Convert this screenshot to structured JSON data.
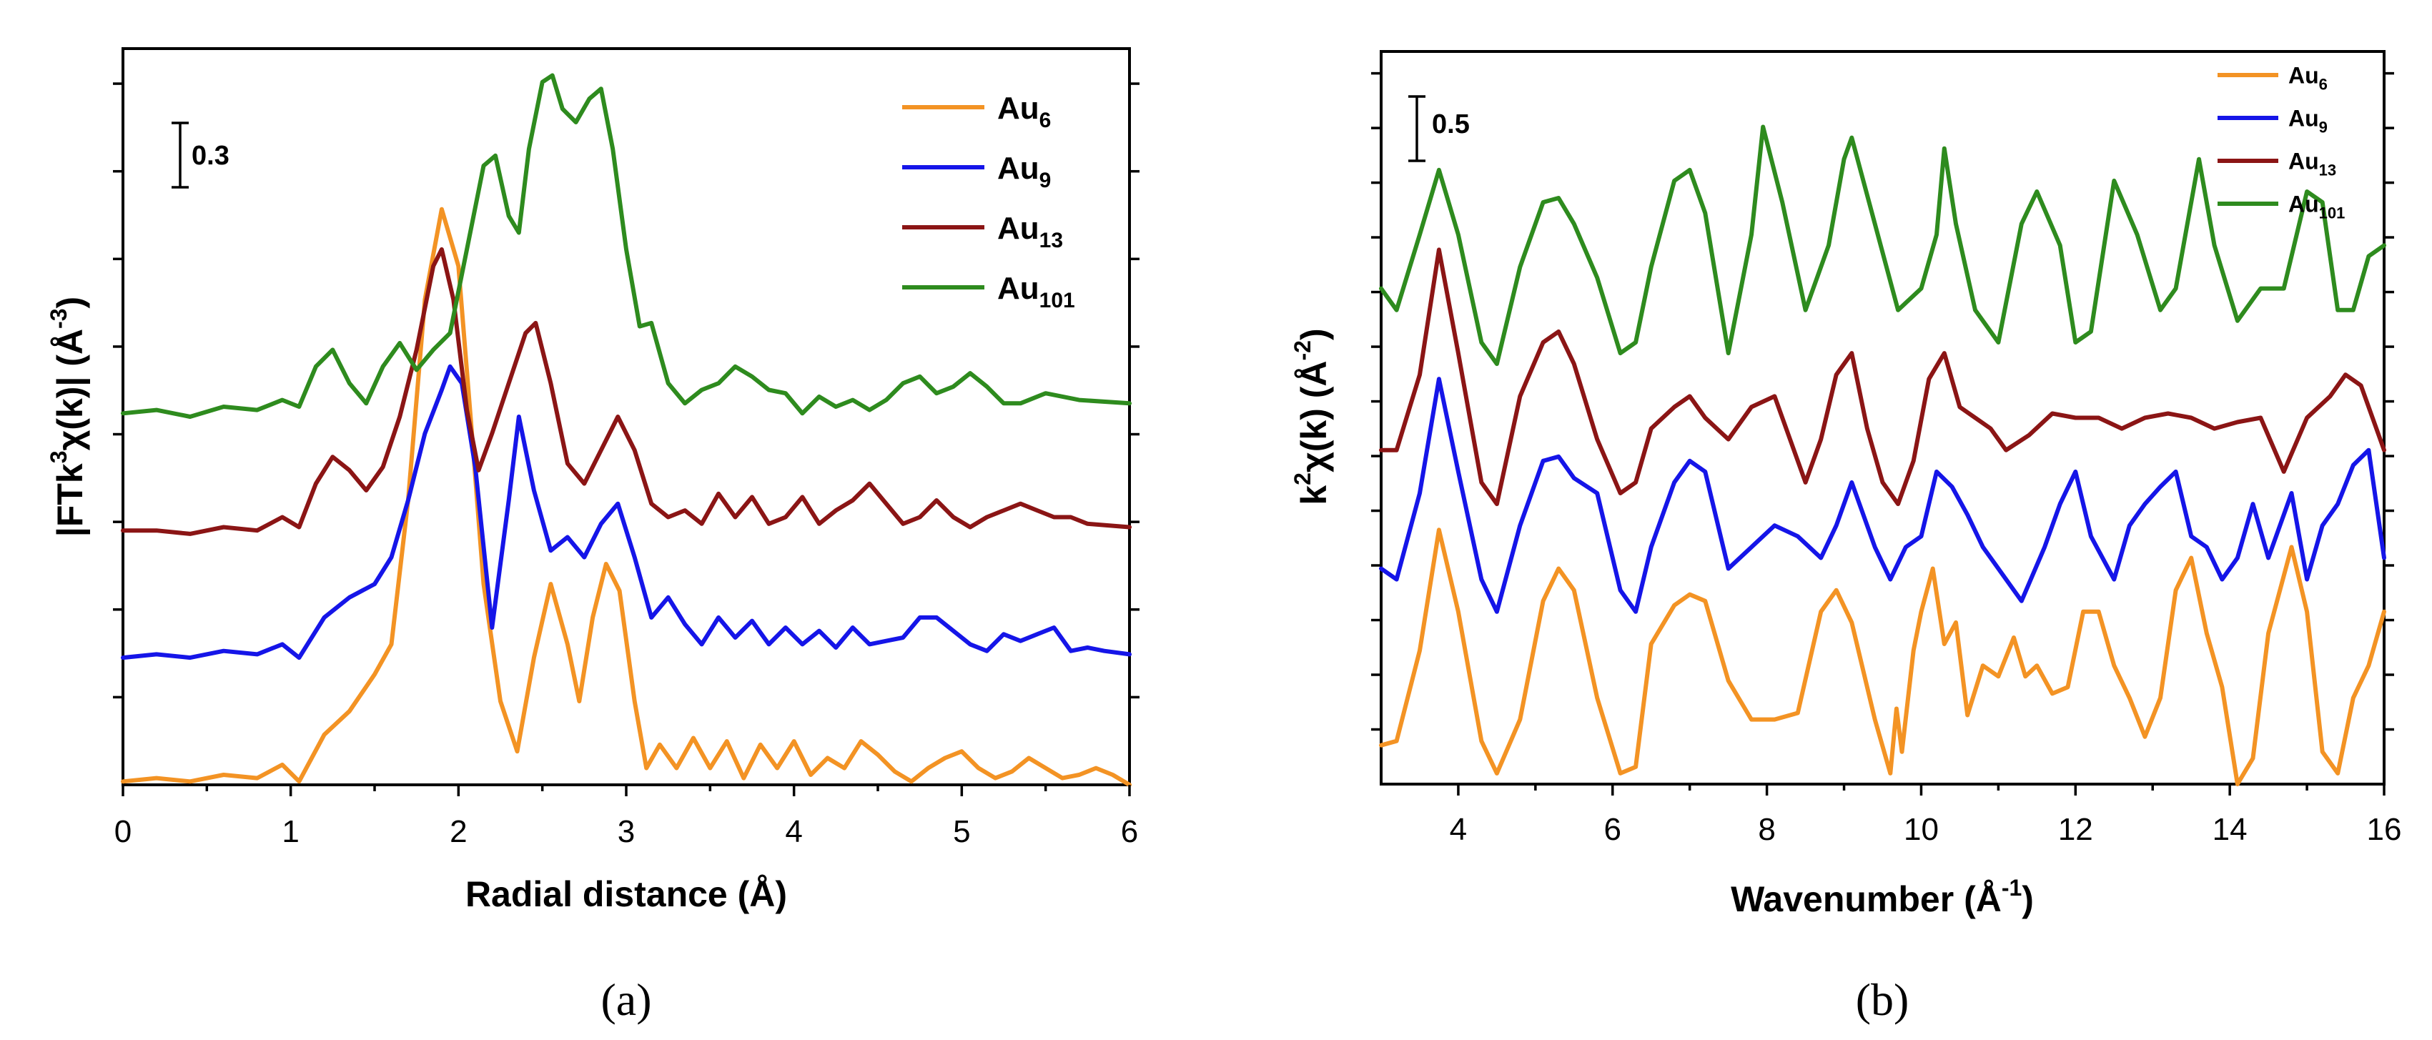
{
  "colors": {
    "Au6": "#f39324",
    "Au9": "#1515e8",
    "Au13": "#8b1515",
    "Au101": "#2e8b1e"
  },
  "chart_data": [
    {
      "type": "line",
      "panel_label": "(a)",
      "xlabel": "Radial distance (Å)",
      "ylabel_main": "|FTk",
      "ylabel_sup1": "3",
      "ylabel_mid": "χ(k)| (Å",
      "ylabel_sup2": "-3",
      "ylabel_end": ")",
      "xlim": [
        0,
        6
      ],
      "ylim": [
        0,
        2.2
      ],
      "xticks": [
        0,
        1,
        2,
        3,
        4,
        5,
        6
      ],
      "xtick_labels": [
        "0",
        "1",
        "2",
        "3",
        "4",
        "5",
        "6"
      ],
      "scale_bar": {
        "value": 0.3,
        "label": "0.3"
      },
      "legend": [
        {
          "base": "Au",
          "sub": "6",
          "color": "#f39324"
        },
        {
          "base": "Au",
          "sub": "9",
          "color": "#1515e8"
        },
        {
          "base": "Au",
          "sub": "13",
          "color": "#8b1515"
        },
        {
          "base": "Au",
          "sub": "101",
          "color": "#2e8b1e"
        }
      ],
      "series": [
        {
          "name": "Au6",
          "color": "#f39324",
          "x": [
            0,
            0.2,
            0.4,
            0.6,
            0.8,
            0.95,
            1.05,
            1.2,
            1.35,
            1.5,
            1.6,
            1.7,
            1.8,
            1.9,
            2.0,
            2.08,
            2.15,
            2.25,
            2.35,
            2.45,
            2.55,
            2.65,
            2.72,
            2.8,
            2.88,
            2.96,
            3.05,
            3.12,
            3.2,
            3.3,
            3.4,
            3.5,
            3.6,
            3.7,
            3.8,
            3.9,
            4.0,
            4.1,
            4.2,
            4.3,
            4.4,
            4.5,
            4.6,
            4.7,
            4.8,
            4.9,
            5.0,
            5.1,
            5.2,
            5.3,
            5.4,
            5.5,
            5.6,
            5.7,
            5.8,
            5.9,
            6.0
          ],
          "y": [
            0.01,
            0.02,
            0.01,
            0.03,
            0.02,
            0.06,
            0.01,
            0.15,
            0.22,
            0.33,
            0.42,
            0.85,
            1.45,
            1.72,
            1.55,
            1.05,
            0.6,
            0.25,
            0.1,
            0.38,
            0.6,
            0.42,
            0.25,
            0.5,
            0.66,
            0.58,
            0.25,
            0.05,
            0.12,
            0.05,
            0.14,
            0.05,
            0.13,
            0.02,
            0.12,
            0.05,
            0.13,
            0.03,
            0.08,
            0.05,
            0.13,
            0.09,
            0.04,
            0.01,
            0.05,
            0.08,
            0.1,
            0.05,
            0.02,
            0.04,
            0.08,
            0.05,
            0.02,
            0.03,
            0.05,
            0.03,
            0.0
          ]
        },
        {
          "name": "Au9",
          "color": "#1515e8",
          "x": [
            0,
            0.2,
            0.4,
            0.6,
            0.8,
            0.95,
            1.05,
            1.2,
            1.35,
            1.5,
            1.6,
            1.7,
            1.8,
            1.9,
            1.95,
            2.02,
            2.1,
            2.2,
            2.3,
            2.36,
            2.45,
            2.55,
            2.65,
            2.75,
            2.85,
            2.95,
            3.05,
            3.15,
            3.25,
            3.35,
            3.45,
            3.55,
            3.65,
            3.75,
            3.85,
            3.95,
            4.05,
            4.15,
            4.25,
            4.35,
            4.45,
            4.55,
            4.65,
            4.75,
            4.85,
            4.95,
            5.05,
            5.15,
            5.25,
            5.35,
            5.45,
            5.55,
            5.65,
            5.75,
            5.85,
            6.0
          ],
          "y": [
            0.38,
            0.39,
            0.38,
            0.4,
            0.39,
            0.42,
            0.38,
            0.5,
            0.56,
            0.6,
            0.68,
            0.85,
            1.05,
            1.18,
            1.25,
            1.2,
            0.95,
            0.47,
            0.85,
            1.1,
            0.88,
            0.7,
            0.74,
            0.68,
            0.78,
            0.84,
            0.68,
            0.5,
            0.56,
            0.48,
            0.42,
            0.5,
            0.44,
            0.49,
            0.42,
            0.47,
            0.42,
            0.46,
            0.41,
            0.47,
            0.42,
            0.43,
            0.44,
            0.5,
            0.5,
            0.46,
            0.42,
            0.4,
            0.45,
            0.43,
            0.45,
            0.47,
            0.4,
            0.41,
            0.4,
            0.39
          ]
        },
        {
          "name": "Au13",
          "color": "#8b1515",
          "x": [
            0,
            0.2,
            0.4,
            0.6,
            0.8,
            0.95,
            1.05,
            1.15,
            1.25,
            1.35,
            1.45,
            1.55,
            1.65,
            1.75,
            1.85,
            1.9,
            1.97,
            2.05,
            2.12,
            2.2,
            2.3,
            2.4,
            2.46,
            2.55,
            2.65,
            2.75,
            2.85,
            2.95,
            3.05,
            3.15,
            3.25,
            3.35,
            3.45,
            3.55,
            3.65,
            3.75,
            3.85,
            3.95,
            4.05,
            4.15,
            4.25,
            4.35,
            4.45,
            4.55,
            4.65,
            4.75,
            4.85,
            4.95,
            5.05,
            5.15,
            5.25,
            5.35,
            5.45,
            5.55,
            5.65,
            5.75,
            6.0
          ],
          "y": [
            0.76,
            0.76,
            0.75,
            0.77,
            0.76,
            0.8,
            0.77,
            0.9,
            0.98,
            0.94,
            0.88,
            0.95,
            1.1,
            1.3,
            1.55,
            1.6,
            1.45,
            1.12,
            0.94,
            1.05,
            1.2,
            1.35,
            1.38,
            1.2,
            0.96,
            0.9,
            1.0,
            1.1,
            1.0,
            0.84,
            0.8,
            0.82,
            0.78,
            0.87,
            0.8,
            0.86,
            0.78,
            0.8,
            0.86,
            0.78,
            0.82,
            0.85,
            0.9,
            0.84,
            0.78,
            0.8,
            0.85,
            0.8,
            0.77,
            0.8,
            0.82,
            0.84,
            0.82,
            0.8,
            0.8,
            0.78,
            0.77
          ]
        },
        {
          "name": "Au101",
          "color": "#2e8b1e",
          "x": [
            0,
            0.2,
            0.4,
            0.6,
            0.8,
            0.95,
            1.05,
            1.15,
            1.25,
            1.35,
            1.45,
            1.55,
            1.65,
            1.75,
            1.85,
            1.95,
            2.05,
            2.15,
            2.22,
            2.3,
            2.36,
            2.42,
            2.5,
            2.56,
            2.62,
            2.7,
            2.78,
            2.85,
            2.92,
            3.0,
            3.08,
            3.15,
            3.25,
            3.35,
            3.45,
            3.55,
            3.65,
            3.75,
            3.85,
            3.95,
            4.05,
            4.15,
            4.25,
            4.35,
            4.45,
            4.55,
            4.65,
            4.75,
            4.85,
            4.95,
            5.05,
            5.15,
            5.25,
            5.35,
            5.5,
            5.7,
            6.0
          ],
          "y": [
            1.11,
            1.12,
            1.1,
            1.13,
            1.12,
            1.15,
            1.13,
            1.25,
            1.3,
            1.2,
            1.14,
            1.25,
            1.32,
            1.24,
            1.3,
            1.35,
            1.6,
            1.85,
            1.88,
            1.7,
            1.65,
            1.9,
            2.1,
            2.12,
            2.02,
            1.98,
            2.05,
            2.08,
            1.9,
            1.6,
            1.37,
            1.38,
            1.2,
            1.14,
            1.18,
            1.2,
            1.25,
            1.22,
            1.18,
            1.17,
            1.11,
            1.16,
            1.13,
            1.15,
            1.12,
            1.15,
            1.2,
            1.22,
            1.17,
            1.19,
            1.23,
            1.19,
            1.14,
            1.14,
            1.17,
            1.15,
            1.14
          ]
        }
      ]
    },
    {
      "type": "line",
      "panel_label": "(b)",
      "xlabel_main": "Wavenumber (Å",
      "xlabel_sup": "-1",
      "xlabel_end": ")",
      "ylabel_main": "k",
      "ylabel_sup1": "2",
      "ylabel_mid": "χ(k) (Å",
      "ylabel_sup2": "-2",
      "ylabel_end": ")",
      "xlim": [
        3,
        16
      ],
      "ylim": [
        0,
        3.4
      ],
      "xticks": [
        4,
        6,
        8,
        10,
        12,
        14,
        16
      ],
      "xtick_labels": [
        "4",
        "6",
        "8",
        "10",
        "12",
        "14",
        "16"
      ],
      "scale_bar": {
        "value": 0.5,
        "label": "0.5"
      },
      "legend": [
        {
          "base": "Au",
          "sub": "6",
          "color": "#f39324"
        },
        {
          "base": "Au",
          "sub": "9",
          "color": "#1515e8"
        },
        {
          "base": "Au",
          "sub": "13",
          "color": "#8b1515"
        },
        {
          "base": "Au",
          "sub": "101",
          "color": "#2e8b1e"
        }
      ],
      "series": [
        {
          "name": "Au6",
          "color": "#f39324",
          "x": [
            3.0,
            3.2,
            3.5,
            3.75,
            4.0,
            4.3,
            4.5,
            4.8,
            5.1,
            5.3,
            5.5,
            5.8,
            6.1,
            6.3,
            6.5,
            6.8,
            7.0,
            7.2,
            7.5,
            7.8,
            8.1,
            8.4,
            8.7,
            8.9,
            9.1,
            9.4,
            9.6,
            9.68,
            9.75,
            9.9,
            10.0,
            10.15,
            10.3,
            10.45,
            10.6,
            10.8,
            11.0,
            11.2,
            11.35,
            11.5,
            11.7,
            11.9,
            12.1,
            12.3,
            12.5,
            12.7,
            12.9,
            13.1,
            13.3,
            13.5,
            13.7,
            13.9,
            14.1,
            14.3,
            14.5,
            14.8,
            15.0,
            15.2,
            15.4,
            15.6,
            15.8,
            16.0
          ],
          "y": [
            0.18,
            0.2,
            0.62,
            1.18,
            0.8,
            0.2,
            0.05,
            0.3,
            0.85,
            1.0,
            0.9,
            0.4,
            0.05,
            0.08,
            0.65,
            0.83,
            0.88,
            0.85,
            0.48,
            0.3,
            0.3,
            0.33,
            0.8,
            0.9,
            0.75,
            0.3,
            0.05,
            0.35,
            0.15,
            0.62,
            0.8,
            1.0,
            0.65,
            0.75,
            0.32,
            0.55,
            0.5,
            0.68,
            0.5,
            0.55,
            0.42,
            0.45,
            0.8,
            0.8,
            0.55,
            0.4,
            0.22,
            0.4,
            0.9,
            1.05,
            0.7,
            0.45,
            0.0,
            0.12,
            0.7,
            1.1,
            0.8,
            0.15,
            0.05,
            0.4,
            0.55,
            0.8
          ]
        },
        {
          "name": "Au9",
          "color": "#1515e8",
          "x": [
            3.0,
            3.2,
            3.5,
            3.75,
            4.0,
            4.3,
            4.5,
            4.8,
            5.1,
            5.3,
            5.5,
            5.8,
            6.1,
            6.3,
            6.5,
            6.8,
            7.0,
            7.2,
            7.5,
            7.8,
            8.1,
            8.4,
            8.7,
            8.9,
            9.1,
            9.4,
            9.6,
            9.8,
            10.0,
            10.2,
            10.4,
            10.6,
            10.8,
            11.0,
            11.3,
            11.6,
            11.8,
            12.0,
            12.2,
            12.5,
            12.7,
            12.9,
            13.1,
            13.3,
            13.5,
            13.7,
            13.9,
            14.1,
            14.3,
            14.5,
            14.8,
            15.0,
            15.2,
            15.4,
            15.6,
            15.8,
            16.0
          ],
          "y": [
            1.0,
            0.95,
            1.35,
            1.88,
            1.45,
            0.95,
            0.8,
            1.2,
            1.5,
            1.52,
            1.42,
            1.35,
            0.9,
            0.8,
            1.1,
            1.4,
            1.5,
            1.45,
            1.0,
            1.1,
            1.2,
            1.15,
            1.05,
            1.2,
            1.4,
            1.1,
            0.95,
            1.1,
            1.15,
            1.45,
            1.38,
            1.25,
            1.1,
            1.0,
            0.85,
            1.1,
            1.3,
            1.45,
            1.15,
            0.95,
            1.2,
            1.3,
            1.38,
            1.45,
            1.15,
            1.1,
            0.95,
            1.05,
            1.3,
            1.05,
            1.35,
            0.95,
            1.2,
            1.3,
            1.48,
            1.55,
            1.05
          ]
        },
        {
          "name": "Au13",
          "color": "#8b1515",
          "x": [
            3.0,
            3.2,
            3.5,
            3.75,
            4.0,
            4.3,
            4.5,
            4.8,
            5.1,
            5.3,
            5.5,
            5.8,
            6.1,
            6.3,
            6.5,
            6.8,
            7.0,
            7.2,
            7.5,
            7.8,
            8.1,
            8.3,
            8.5,
            8.7,
            8.9,
            9.1,
            9.3,
            9.5,
            9.7,
            9.9,
            10.1,
            10.3,
            10.5,
            10.7,
            10.9,
            11.1,
            11.4,
            11.7,
            12.0,
            12.3,
            12.6,
            12.9,
            13.2,
            13.5,
            13.8,
            14.1,
            14.4,
            14.7,
            15.0,
            15.3,
            15.5,
            15.7,
            16.0
          ],
          "y": [
            1.55,
            1.55,
            1.9,
            2.48,
            2.0,
            1.4,
            1.3,
            1.8,
            2.05,
            2.1,
            1.95,
            1.6,
            1.35,
            1.4,
            1.65,
            1.75,
            1.8,
            1.7,
            1.6,
            1.75,
            1.8,
            1.6,
            1.4,
            1.6,
            1.9,
            2.0,
            1.65,
            1.4,
            1.3,
            1.5,
            1.88,
            2.0,
            1.75,
            1.7,
            1.65,
            1.55,
            1.62,
            1.72,
            1.7,
            1.7,
            1.65,
            1.7,
            1.72,
            1.7,
            1.65,
            1.68,
            1.7,
            1.45,
            1.7,
            1.8,
            1.9,
            1.85,
            1.55
          ]
        },
        {
          "name": "Au101",
          "color": "#2e8b1e",
          "x": [
            3.0,
            3.2,
            3.5,
            3.75,
            4.0,
            4.3,
            4.5,
            4.8,
            5.1,
            5.3,
            5.5,
            5.8,
            6.1,
            6.3,
            6.5,
            6.8,
            7.0,
            7.2,
            7.5,
            7.8,
            7.95,
            8.2,
            8.5,
            8.8,
            9.0,
            9.1,
            9.4,
            9.7,
            10.0,
            10.2,
            10.3,
            10.45,
            10.7,
            11.0,
            11.3,
            11.5,
            11.8,
            12.0,
            12.2,
            12.5,
            12.8,
            13.1,
            13.3,
            13.6,
            13.8,
            14.1,
            14.4,
            14.7,
            15.0,
            15.2,
            15.4,
            15.6,
            15.8,
            16.0
          ],
          "y": [
            2.3,
            2.2,
            2.55,
            2.85,
            2.55,
            2.05,
            1.95,
            2.4,
            2.7,
            2.72,
            2.6,
            2.35,
            2.0,
            2.05,
            2.4,
            2.8,
            2.85,
            2.65,
            2.0,
            2.55,
            3.05,
            2.7,
            2.2,
            2.5,
            2.9,
            3.0,
            2.6,
            2.2,
            2.3,
            2.55,
            2.95,
            2.6,
            2.2,
            2.05,
            2.6,
            2.75,
            2.5,
            2.05,
            2.1,
            2.8,
            2.55,
            2.2,
            2.3,
            2.9,
            2.5,
            2.15,
            2.3,
            2.3,
            2.75,
            2.7,
            2.2,
            2.2,
            2.45,
            2.5
          ]
        }
      ]
    }
  ]
}
